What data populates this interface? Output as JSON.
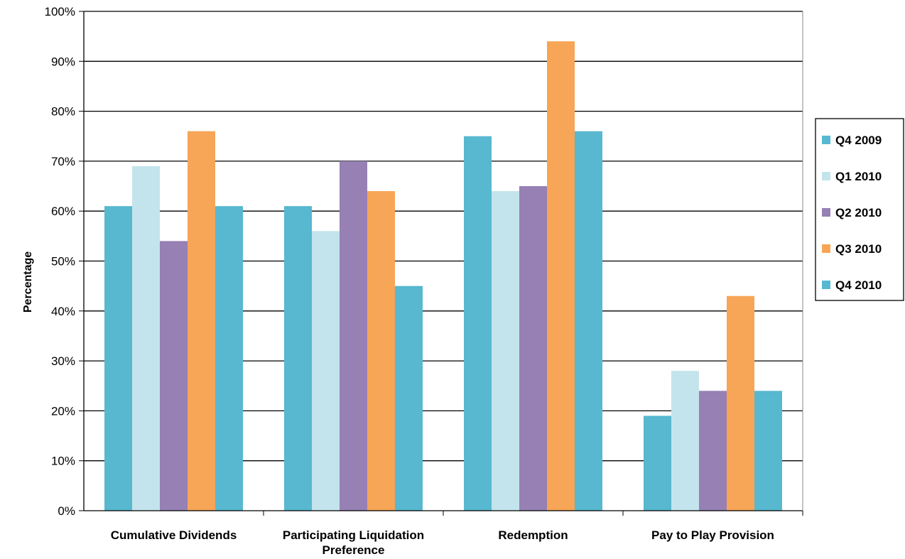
{
  "chart_data": {
    "type": "bar",
    "title": "",
    "xlabel": "",
    "ylabel": "Percentage",
    "ylim": [
      0,
      100
    ],
    "yticks": [
      "0%",
      "10%",
      "20%",
      "30%",
      "40%",
      "50%",
      "60%",
      "70%",
      "80%",
      "90%",
      "100%"
    ],
    "categories": [
      [
        "Cumulative Dividends"
      ],
      [
        "Participating Liquidation",
        "Preference"
      ],
      [
        "Redemption"
      ],
      [
        "Pay to Play Provision"
      ]
    ],
    "series": [
      {
        "name": "Q4 2009",
        "color": "#57B8D0",
        "values": [
          61,
          61,
          75,
          19
        ]
      },
      {
        "name": "Q1 2010",
        "color": "#C3E4EC",
        "values": [
          69,
          56,
          64,
          28
        ]
      },
      {
        "name": "Q2 2010",
        "color": "#9680B4",
        "values": [
          54,
          70,
          65,
          24
        ]
      },
      {
        "name": "Q3 2010",
        "color": "#F7A556",
        "values": [
          76,
          64,
          94,
          43
        ]
      },
      {
        "name": "Q4 2010",
        "color": "#57B8D0",
        "values": [
          61,
          45,
          76,
          24
        ]
      }
    ],
    "grid": true,
    "legend_position": "right"
  }
}
